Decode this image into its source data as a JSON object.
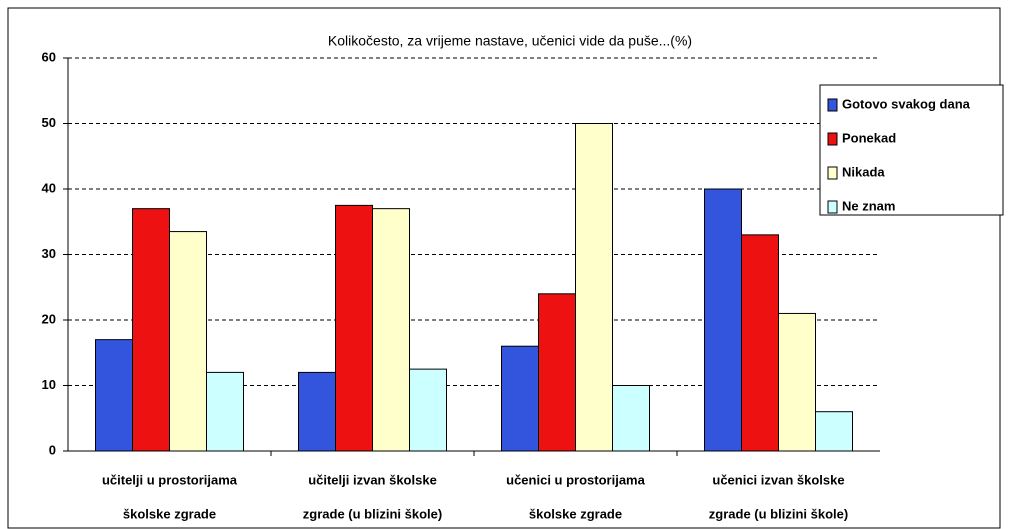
{
  "chart_data": {
    "type": "bar",
    "title": "Kolikočesto, za vrijeme nastave, učenici vide da puše...(%)",
    "categories": [
      [
        "učitelji u prostorijama",
        "školske zgrade"
      ],
      [
        "učitelji izvan školske",
        "zgrade (u blizini škole)"
      ],
      [
        "učenici u prostorijama",
        "školske zgrade"
      ],
      [
        "učenici izvan školske",
        "zgrade (u blizini škole)"
      ]
    ],
    "series": [
      {
        "name": "Gotovo svakog dana",
        "color": "#3355dd",
        "values": [
          17,
          12,
          16,
          40
        ]
      },
      {
        "name": "Ponekad",
        "color": "#ee1111",
        "values": [
          37,
          37.5,
          24,
          33
        ]
      },
      {
        "name": "Nikada",
        "color": "#ffffcc",
        "values": [
          33.5,
          37,
          50,
          21
        ]
      },
      {
        "name": "Ne znam",
        "color": "#ccffff",
        "values": [
          12,
          12.5,
          10,
          6
        ]
      }
    ],
    "ylim": [
      0,
      60
    ],
    "yticks": [
      0,
      10,
      20,
      30,
      40,
      50,
      60
    ],
    "grid": true,
    "legend": "top-right"
  }
}
